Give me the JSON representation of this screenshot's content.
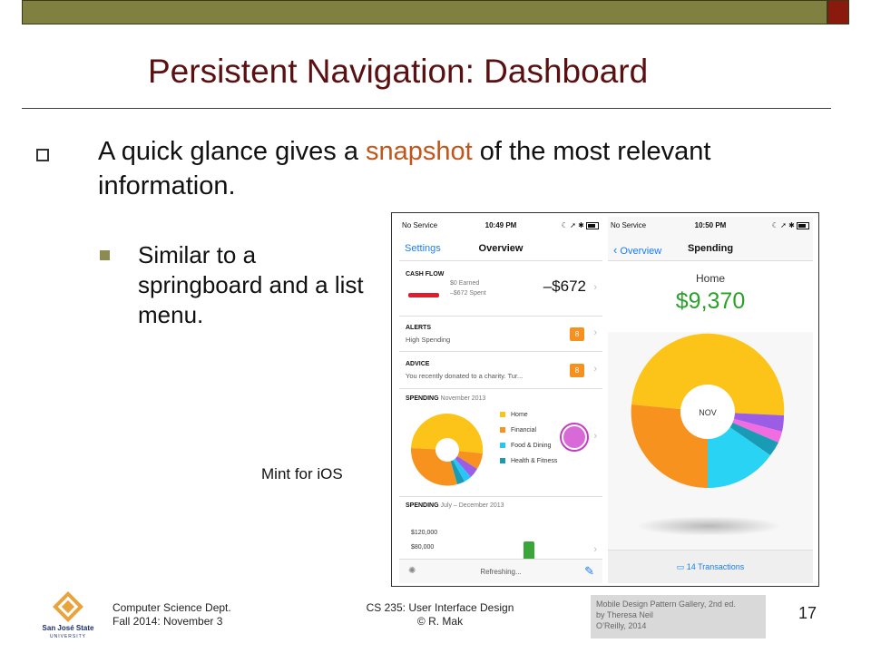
{
  "slide": {
    "title": "Persistent Navigation: Dashboard",
    "bullet_prefix": "A quick glance gives a ",
    "bullet_highlight": "snapshot",
    "bullet_suffix": " of the most relevant information.",
    "sub_bullet": "Similar to a springboard and a list menu.",
    "caption": "Mint for iOS",
    "accent_colors": {
      "topbar": "#808040",
      "title": "#5a1010",
      "highlight": "#c0561a"
    }
  },
  "left_phone": {
    "status": {
      "carrier": "No Service",
      "time": "10:49 PM"
    },
    "nav": {
      "back": "Settings",
      "title": "Overview"
    },
    "cash_flow": {
      "header": "CASH FLOW",
      "earned": "$0 Earned",
      "spent": "–$672 Spent",
      "total": "–$672"
    },
    "alerts": {
      "header": "ALERTS",
      "sub": "High Spending",
      "badge": "8"
    },
    "advice": {
      "header": "ADVICE",
      "sub": "You recently donated to a charity. Tur...",
      "badge": "8"
    },
    "spending": {
      "header": "SPENDING",
      "period": "November 2013",
      "legend": [
        {
          "label": "Home",
          "color": "#fcc419"
        },
        {
          "label": "Financial",
          "color": "#f7921e"
        },
        {
          "label": "Food & Dining",
          "color": "#29c5f6"
        },
        {
          "label": "Health & Fitness",
          "color": "#1a9bb5"
        }
      ]
    },
    "spending_trend": {
      "header": "SPENDING",
      "period": "July – December 2013",
      "y_labels": [
        "$120,000",
        "$80,000"
      ]
    },
    "footer": {
      "status": "Refreshing..."
    }
  },
  "right_phone": {
    "status": {
      "carrier": "No Service",
      "time": "10:50 PM"
    },
    "nav": {
      "back": "Overview",
      "title": "Spending"
    },
    "hero": {
      "label": "Home",
      "amount": "$9,370"
    },
    "pie_center": "NOV",
    "transactions": "14 Transactions"
  },
  "footer": {
    "dept": "Computer Science Dept.",
    "term": "Fall 2014: November 3",
    "course": "CS 235: User Interface Design",
    "author": "© R. Mak",
    "ref_line1": "Mobile Design Pattern Gallery, 2nd ed.",
    "ref_line2": "by Theresa Neil",
    "ref_line3": "O’Reilly, 2014",
    "page": "17",
    "logo_text": "San José State University"
  }
}
